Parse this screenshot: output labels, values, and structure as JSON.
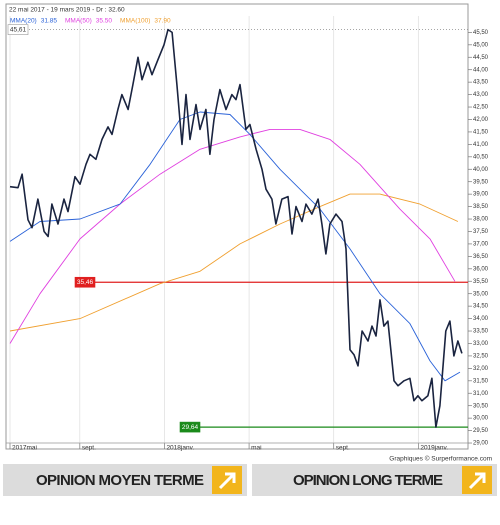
{
  "chart_data": {
    "type": "line",
    "header": "22 mai 2017 - 19 mars 2019 - Dr : 32.60",
    "xlim": [
      0.7,
      22.3
    ],
    "ylim": [
      28.8,
      46.6
    ],
    "xticks": [
      {
        "value": 0.7,
        "label": "2017mai"
      },
      {
        "value": 4,
        "label": "sept."
      },
      {
        "value": 8,
        "label": "2018janv."
      },
      {
        "value": 12,
        "label": "mai"
      },
      {
        "value": 16,
        "label": "sept."
      },
      {
        "value": 20,
        "label": "2019janv."
      }
    ],
    "yticks": [
      {
        "value": 45.5,
        "label": "45,50"
      },
      {
        "value": 45,
        "label": "45,00"
      },
      {
        "value": 44.5,
        "label": "44,50"
      },
      {
        "value": 44,
        "label": "44,00"
      },
      {
        "value": 43.5,
        "label": "43,50"
      },
      {
        "value": 43,
        "label": "43,00"
      },
      {
        "value": 42.5,
        "label": "42,50"
      },
      {
        "value": 42,
        "label": "42,00"
      },
      {
        "value": 41.5,
        "label": "41,50"
      },
      {
        "value": 41,
        "label": "41,00"
      },
      {
        "value": 40.5,
        "label": "40,50"
      },
      {
        "value": 40,
        "label": "40,00"
      },
      {
        "value": 39.5,
        "label": "39,50"
      },
      {
        "value": 39,
        "label": "39,00"
      },
      {
        "value": 38.5,
        "label": "38,50"
      },
      {
        "value": 38,
        "label": "38,00"
      },
      {
        "value": 37.5,
        "label": "37,50"
      },
      {
        "value": 37,
        "label": "37,00"
      },
      {
        "value": 36.5,
        "label": "36,50"
      },
      {
        "value": 36,
        "label": "36,00"
      },
      {
        "value": 35.5,
        "label": "35,50"
      },
      {
        "value": 35,
        "label": "35,00"
      },
      {
        "value": 34.5,
        "label": "34,50"
      },
      {
        "value": 34,
        "label": "34,00"
      },
      {
        "value": 33.5,
        "label": "33,50"
      },
      {
        "value": 33,
        "label": "33,00"
      },
      {
        "value": 32.5,
        "label": "32,50"
      },
      {
        "value": 32,
        "label": "32,00"
      },
      {
        "value": 31.5,
        "label": "31,50"
      },
      {
        "value": 31,
        "label": "31,00"
      },
      {
        "value": 30.5,
        "label": "30,50"
      },
      {
        "value": 30,
        "label": "30,00"
      },
      {
        "value": 29.5,
        "label": "29,50"
      },
      {
        "value": 29,
        "label": "29,00"
      }
    ],
    "grid": true,
    "levels": [
      {
        "value": 45.61,
        "label": "45,61",
        "color": "#888888",
        "style": "dotted"
      },
      {
        "value": 35.46,
        "label": "35,46",
        "color": "#e02020",
        "style": "solid"
      },
      {
        "value": 29.64,
        "label": "29,64",
        "color": "#1a8a1a",
        "style": "solid"
      }
    ],
    "series": [
      {
        "color": "#1a2440",
        "x": [
          0.7,
          1.08,
          1.27,
          1.55,
          1.74,
          2.02,
          2.31,
          2.5,
          2.68,
          2.97,
          3.25,
          3.44,
          3.77,
          4.01,
          4.29,
          4.48,
          4.76,
          5.05,
          5.33,
          5.52,
          5.8,
          5.99,
          6.28,
          6.51,
          6.75,
          6.94,
          7.22,
          7.41,
          7.69,
          7.98,
          8.17,
          8.36,
          8.59,
          8.83,
          9.02,
          9.21,
          9.49,
          9.68,
          9.96,
          10.15,
          10.34,
          10.62,
          10.91,
          11.19,
          11.38,
          11.57,
          11.85,
          12.04,
          12.33,
          12.61,
          12.8,
          13.08,
          13.27,
          13.55,
          13.84,
          14.03,
          14.22,
          14.5,
          14.69,
          14.97,
          15.26,
          15.44,
          15.63,
          15.82,
          16.11,
          16.39,
          16.58,
          16.77,
          16.96,
          17.15,
          17.34,
          17.62,
          17.81,
          18.0,
          18.19,
          18.37,
          18.56,
          18.85,
          19.04,
          19.32,
          19.6,
          19.79,
          19.98,
          20.17,
          20.45,
          20.64,
          20.83,
          21.02,
          21.3,
          21.49,
          21.68,
          21.87,
          22.06
        ],
        "values": [
          39.3,
          39.26,
          39.8,
          37.97,
          37.65,
          38.8,
          37.5,
          37.3,
          38.6,
          37.8,
          38.8,
          38.3,
          39.7,
          39.4,
          40.2,
          40.6,
          40.4,
          41.2,
          41.7,
          41.4,
          42.4,
          43.0,
          42.4,
          43.4,
          44.5,
          43.6,
          44.3,
          43.8,
          44.4,
          45.0,
          45.61,
          45.5,
          43.4,
          41.0,
          43.0,
          41.2,
          42.6,
          41.6,
          42.4,
          40.6,
          42.0,
          43.2,
          42.4,
          43.0,
          42.8,
          43.4,
          41.6,
          41.8,
          40.8,
          40.0,
          39.2,
          38.8,
          37.8,
          38.8,
          38.9,
          37.4,
          38.5,
          37.9,
          38.6,
          38.2,
          38.8,
          37.8,
          36.6,
          37.8,
          38.2,
          37.9,
          36.8,
          32.75,
          32.55,
          32.1,
          33.5,
          33.1,
          33.7,
          33.3,
          34.75,
          33.7,
          33.9,
          31.5,
          31.3,
          31.5,
          31.6,
          30.7,
          30.9,
          30.7,
          30.9,
          31.6,
          29.64,
          30.5,
          33.5,
          33.9,
          32.5,
          33.1,
          32.6
        ]
      },
      {
        "name": "MMA(20)",
        "legend_label": "31.85",
        "color": "#2a62d8",
        "x": [
          0.7,
          2.12,
          4.01,
          5.9,
          7.32,
          8.73,
          9.68,
          11.1,
          12.04,
          13.46,
          15.35,
          16.77,
          18.19,
          19.6,
          20.55,
          21.26,
          21.97
        ],
        "values": [
          37.1,
          37.9,
          38.0,
          38.6,
          40.2,
          42.0,
          42.3,
          42.2,
          41.4,
          40.0,
          38.4,
          36.8,
          35.0,
          33.8,
          32.3,
          31.5,
          31.85
        ]
      },
      {
        "name": "MMA(50)",
        "legend_label": "35.50",
        "color": "#e040e0",
        "x": [
          0.7,
          2.12,
          4.01,
          5.9,
          7.79,
          9.68,
          11.57,
          12.99,
          14.4,
          15.82,
          17.24,
          19.13,
          20.55,
          21.73
        ],
        "values": [
          33.0,
          35.0,
          37.2,
          38.6,
          39.8,
          40.8,
          41.3,
          41.6,
          41.6,
          41.2,
          40.2,
          38.4,
          37.2,
          35.5
        ]
      },
      {
        "name": "MMA(100)",
        "legend_label": "37.90",
        "color": "#f0a030",
        "x": [
          0.7,
          4.01,
          7.79,
          9.68,
          11.57,
          13.46,
          15.35,
          16.77,
          18.19,
          20.08,
          21.87
        ],
        "values": [
          33.5,
          34.0,
          35.4,
          35.9,
          37.0,
          37.8,
          38.5,
          39.0,
          39.0,
          38.6,
          37.9
        ]
      }
    ],
    "credit": "Graphiques © Surperformance.com",
    "buttons": [
      "OPINION MOYEN TERME",
      "OPINION LONG TERME"
    ]
  }
}
